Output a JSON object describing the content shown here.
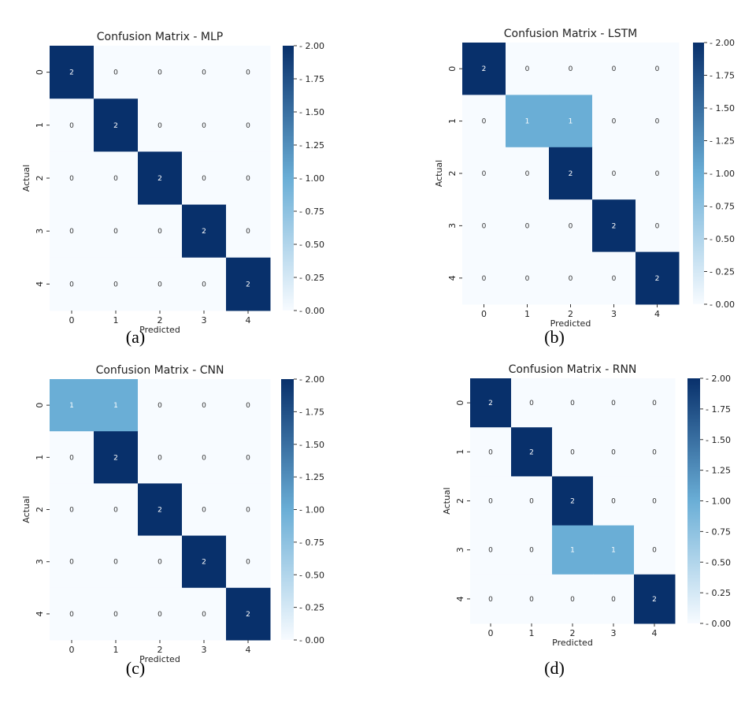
{
  "chart_data": [
    {
      "type": "heatmap",
      "title": "Confusion Matrix - MLP",
      "xlabel": "Predicted",
      "ylabel": "Actual",
      "x_categories": [
        "0",
        "1",
        "2",
        "3",
        "4"
      ],
      "y_categories": [
        "0",
        "1",
        "2",
        "3",
        "4"
      ],
      "values": [
        [
          2,
          0,
          0,
          0,
          0
        ],
        [
          0,
          2,
          0,
          0,
          0
        ],
        [
          0,
          0,
          2,
          0,
          0
        ],
        [
          0,
          0,
          0,
          2,
          0
        ],
        [
          0,
          0,
          0,
          0,
          2
        ]
      ],
      "colorbar": {
        "range": [
          0,
          2
        ],
        "ticks": [
          "0.00",
          "0.25",
          "0.50",
          "0.75",
          "1.00",
          "1.25",
          "1.50",
          "1.75",
          "2.00"
        ]
      },
      "panel_label": "(a)"
    },
    {
      "type": "heatmap",
      "title": "Confusion Matrix - LSTM",
      "xlabel": "Predicted",
      "ylabel": "Actual",
      "x_categories": [
        "0",
        "1",
        "2",
        "3",
        "4"
      ],
      "y_categories": [
        "0",
        "1",
        "2",
        "3",
        "4"
      ],
      "values": [
        [
          2,
          0,
          0,
          0,
          0
        ],
        [
          0,
          1,
          1,
          0,
          0
        ],
        [
          0,
          0,
          2,
          0,
          0
        ],
        [
          0,
          0,
          0,
          2,
          0
        ],
        [
          0,
          0,
          0,
          0,
          2
        ]
      ],
      "colorbar": {
        "range": [
          0,
          2
        ],
        "ticks": [
          "0.00",
          "0.25",
          "0.50",
          "0.75",
          "1.00",
          "1.25",
          "1.50",
          "1.75",
          "2.00"
        ]
      },
      "panel_label": "(b)"
    },
    {
      "type": "heatmap",
      "title": "Confusion Matrix - CNN",
      "xlabel": "Predicted",
      "ylabel": "Actual",
      "x_categories": [
        "0",
        "1",
        "2",
        "3",
        "4"
      ],
      "y_categories": [
        "0",
        "1",
        "2",
        "3",
        "4"
      ],
      "values": [
        [
          1,
          1,
          0,
          0,
          0
        ],
        [
          0,
          2,
          0,
          0,
          0
        ],
        [
          0,
          0,
          2,
          0,
          0
        ],
        [
          0,
          0,
          0,
          2,
          0
        ],
        [
          0,
          0,
          0,
          0,
          2
        ]
      ],
      "colorbar": {
        "range": [
          0,
          2
        ],
        "ticks": [
          "0.00",
          "0.25",
          "0.50",
          "0.75",
          "1.00",
          "1.25",
          "1.50",
          "1.75",
          "2.00"
        ]
      },
      "panel_label": "(c)"
    },
    {
      "type": "heatmap",
      "title": "Confusion Matrix - RNN",
      "xlabel": "Predicted",
      "ylabel": "Actual",
      "x_categories": [
        "0",
        "1",
        "2",
        "3",
        "4"
      ],
      "y_categories": [
        "0",
        "1",
        "2",
        "3",
        "4"
      ],
      "values": [
        [
          2,
          0,
          0,
          0,
          0
        ],
        [
          0,
          2,
          0,
          0,
          0
        ],
        [
          0,
          0,
          2,
          0,
          0
        ],
        [
          0,
          0,
          1,
          1,
          0
        ],
        [
          0,
          0,
          0,
          0,
          2
        ]
      ],
      "colorbar": {
        "range": [
          0,
          2
        ],
        "ticks": [
          "0.00",
          "0.25",
          "0.50",
          "0.75",
          "1.00",
          "1.25",
          "1.50",
          "1.75",
          "2.00"
        ]
      },
      "panel_label": "(d)"
    }
  ],
  "colors": {
    "low": "#f7fbff",
    "mid": "#6aaed6",
    "high": "#08306b",
    "text_dark": "#333333",
    "text_light": "#ffffff"
  }
}
